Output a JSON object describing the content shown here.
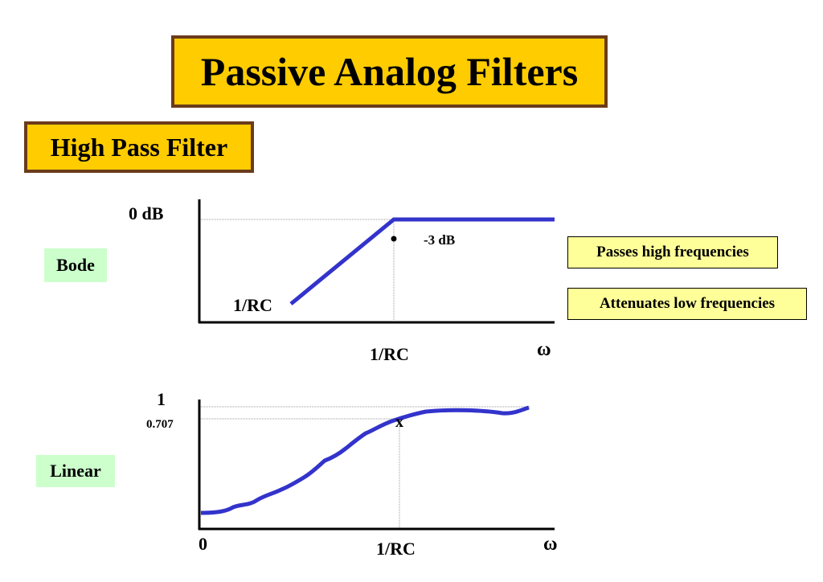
{
  "title": "Passive Analog Filters",
  "subtitle": "High Pass Filter",
  "bode": {
    "label": "Bode",
    "y_top_label": "0 dB",
    "slope_label": "1/RC",
    "x_label": "1/RC",
    "x_axis_symbol": "ω",
    "cutoff_annotation": "-3 dB"
  },
  "linear": {
    "label": "Linear",
    "y_top_label": "1",
    "y_mid_label": "0.707",
    "x_origin_label": "0",
    "x_label": "1/RC",
    "x_axis_symbol": "ω",
    "marker": "x"
  },
  "notes": {
    "high": "Passes high frequencies",
    "low": "Attenuates low frequencies"
  },
  "colors": {
    "curve": "#3333cc",
    "title_bg": "#ffcc00",
    "title_border": "#6b3b1b",
    "green_label_bg": "#ccffcc",
    "note_bg": "#ffff99"
  }
}
